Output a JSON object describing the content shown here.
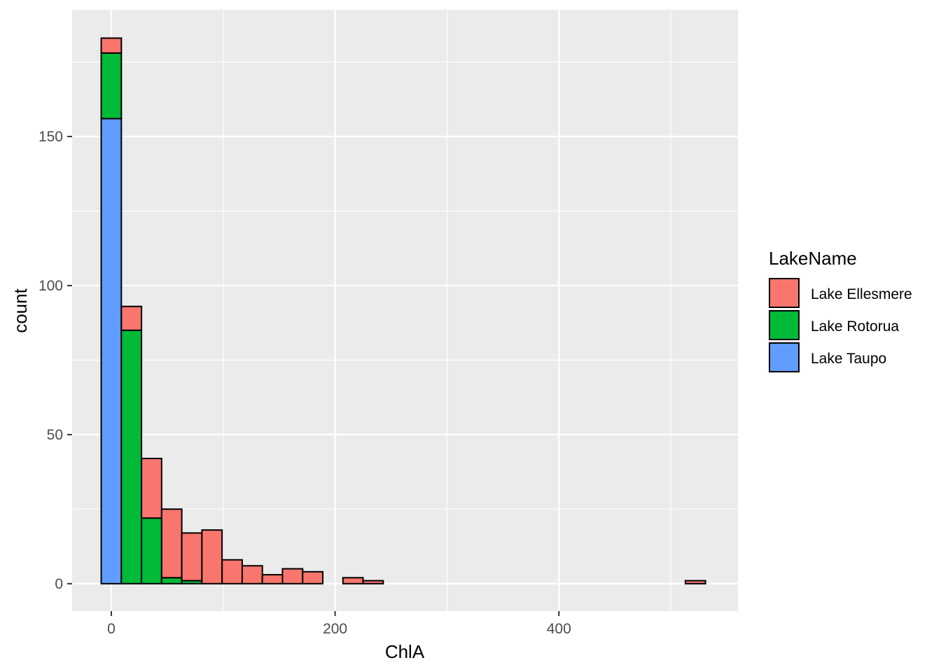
{
  "chart_data": {
    "type": "bar",
    "subtype": "stacked-histogram",
    "xlabel": "ChlA",
    "ylabel": "count",
    "xlim": [
      -35,
      560
    ],
    "ylim": [
      -9.2,
      192.5
    ],
    "x_ticks": [
      0,
      200,
      400
    ],
    "y_ticks": [
      0,
      50,
      100,
      150
    ],
    "grid": true,
    "legend_position": "right",
    "legend_title": "LakeName",
    "bin_width": 18,
    "bin_starts": [
      -9,
      9,
      27,
      45,
      63,
      81,
      99,
      117,
      135,
      153,
      171,
      189,
      207,
      225,
      243,
      261,
      279,
      297,
      315,
      333,
      351,
      369,
      387,
      405,
      423,
      441,
      459,
      477,
      495,
      513
    ],
    "series": [
      {
        "name": "Lake Taupo",
        "color": "#619CFF",
        "values": [
          156,
          0,
          0,
          0,
          0,
          0,
          0,
          0,
          0,
          0,
          0,
          0,
          0,
          0,
          0,
          0,
          0,
          0,
          0,
          0,
          0,
          0,
          0,
          0,
          0,
          0,
          0,
          0,
          0,
          0
        ]
      },
      {
        "name": "Lake Rotorua",
        "color": "#00BA38",
        "values": [
          22,
          85,
          22,
          2,
          1,
          0,
          0,
          0,
          0,
          0,
          0,
          0,
          0,
          0,
          0,
          0,
          0,
          0,
          0,
          0,
          0,
          0,
          0,
          0,
          0,
          0,
          0,
          0,
          0,
          0
        ]
      },
      {
        "name": "Lake Ellesmere",
        "color": "#F8766D",
        "values": [
          5,
          8,
          20,
          23,
          16,
          18,
          8,
          6,
          3,
          5,
          4,
          0,
          2,
          1,
          0,
          0,
          0,
          0,
          0,
          0,
          0,
          0,
          0,
          0,
          0,
          0,
          0,
          0,
          0,
          1
        ]
      }
    ],
    "legend_order": [
      "Lake Ellesmere",
      "Lake Rotorua",
      "Lake Taupo"
    ],
    "panel_color": "#EBEBEB",
    "grid_color": "#FFFFFF"
  }
}
